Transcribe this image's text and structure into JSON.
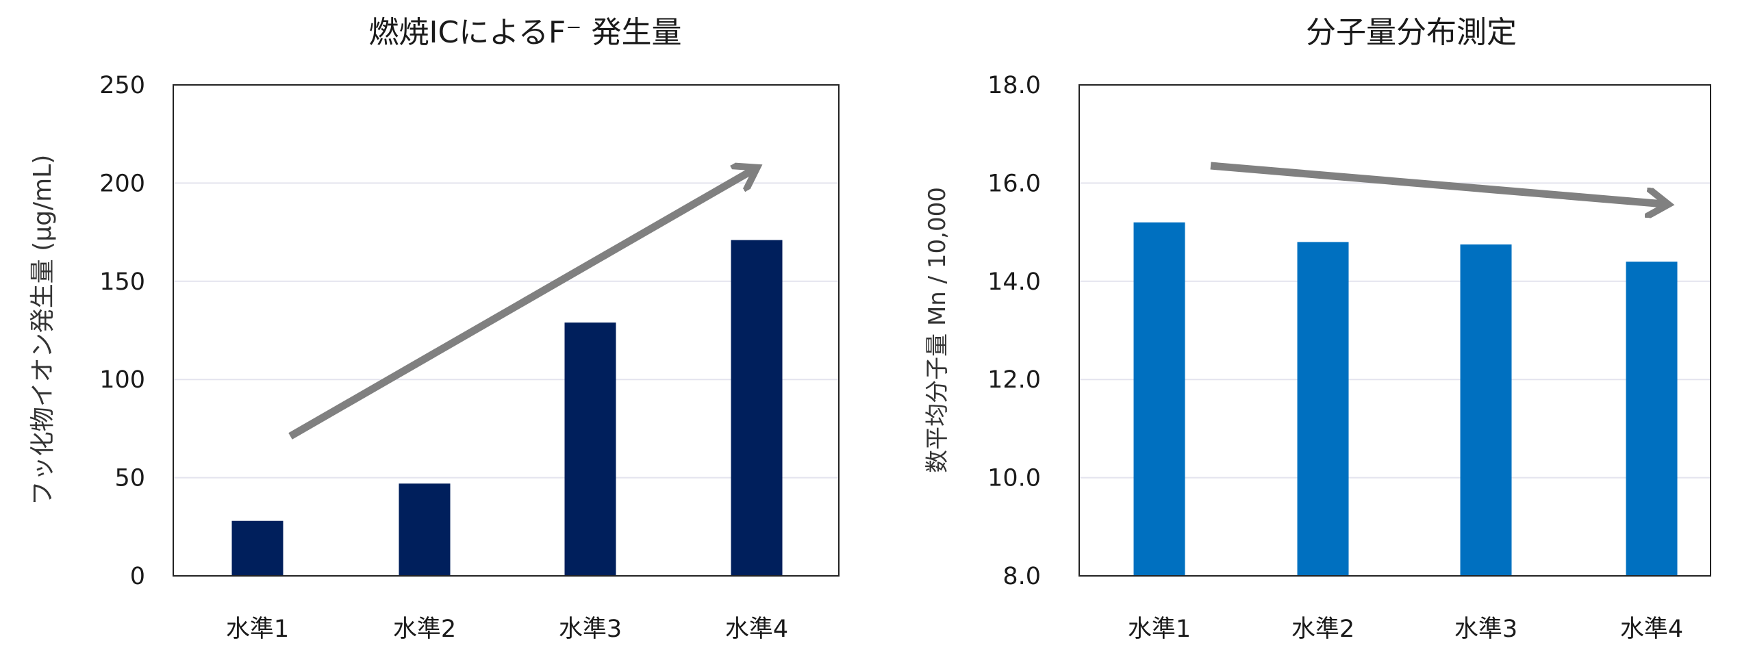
{
  "chart_data": [
    {
      "type": "bar",
      "title": "燃焼ICによるF⁻ 発生量",
      "xlabel": "",
      "ylabel": "フッ化物イオン発生量 (μg/mL)",
      "categories": [
        "水準1",
        "水準2",
        "水準3",
        "水準4"
      ],
      "values": [
        28,
        47,
        129,
        171
      ],
      "ylim": [
        0,
        250
      ],
      "yticks": [
        "0",
        "50",
        "100",
        "150",
        "200",
        "250"
      ],
      "tick_values": [
        0,
        50,
        100,
        150,
        200,
        250
      ],
      "grid": true,
      "bar_color": "#001f5c",
      "annotation": "gray arrow trending upward",
      "arrow_color": "#808080"
    },
    {
      "type": "bar",
      "title": "分子量分布測定",
      "xlabel": "",
      "ylabel": "数平均分子量 Mn / 10,000",
      "categories": [
        "水準1",
        "水準2",
        "水準3",
        "水準4"
      ],
      "values": [
        15.2,
        14.8,
        14.75,
        14.4
      ],
      "ylim": [
        8,
        18
      ],
      "yticks": [
        "8.0",
        "10.0",
        "12.0",
        "14.0",
        "16.0",
        "18.0"
      ],
      "tick_values": [
        8,
        10,
        12,
        14,
        16,
        18
      ],
      "grid": true,
      "bar_color": "#0070c0",
      "annotation": "gray arrow trending slightly downward",
      "arrow_color": "#808080"
    }
  ]
}
